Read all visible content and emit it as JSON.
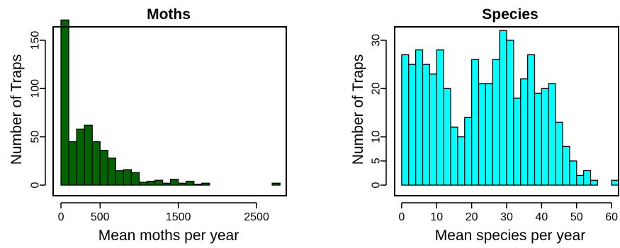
{
  "chart_data": [
    {
      "type": "bar",
      "title": "Moths",
      "xlabel": "Mean moths per year",
      "ylabel": "Number of Traps",
      "bar_color": "#006400",
      "bin_width": 100,
      "bins_start": [
        0,
        100,
        200,
        300,
        400,
        500,
        600,
        700,
        800,
        900,
        1000,
        1100,
        1200,
        1300,
        1400,
        1500,
        1600,
        1700,
        1800,
        1900,
        2000,
        2100,
        2200,
        2300,
        2400,
        2500,
        2600,
        2700
      ],
      "values": [
        171,
        45,
        58,
        62,
        45,
        36,
        28,
        15,
        16,
        13,
        3,
        4,
        5,
        2,
        6,
        2,
        4,
        1,
        2,
        0,
        0,
        0,
        0,
        0,
        0,
        0,
        0,
        2
      ],
      "xlim": [
        -100,
        2880
      ],
      "ylim": [
        0,
        175
      ],
      "xticks": [
        0,
        500,
        1500,
        2500
      ],
      "xtick_labels": [
        "0",
        "500",
        "1500",
        "2500"
      ],
      "yticks": [
        0,
        50,
        100,
        150
      ],
      "ytick_labels": [
        "0",
        "50",
        "100",
        "150"
      ],
      "grid": false,
      "legend": "none"
    },
    {
      "type": "bar",
      "title": "Species",
      "xlabel": "Mean species per year",
      "ylabel": "Number of Traps",
      "bar_color": "#00FFFF",
      "bin_width": 2,
      "bins_start": [
        0,
        2,
        4,
        6,
        8,
        10,
        12,
        14,
        16,
        18,
        20,
        22,
        24,
        26,
        28,
        30,
        32,
        34,
        36,
        38,
        40,
        42,
        44,
        46,
        48,
        50,
        52,
        54,
        56,
        58,
        60
      ],
      "values": [
        27,
        25,
        28,
        25,
        23,
        28,
        20,
        12,
        10,
        14,
        26,
        21,
        21,
        26,
        32,
        30,
        18,
        22,
        27,
        19,
        20,
        21,
        13,
        8,
        5,
        2,
        3,
        1,
        0,
        0,
        1
      ],
      "xlim": [
        -2,
        62
      ],
      "ylim": [
        0,
        33
      ],
      "xticks": [
        0,
        10,
        20,
        30,
        40,
        50,
        60
      ],
      "xtick_labels": [
        "0",
        "10",
        "20",
        "30",
        "40",
        "50",
        "60"
      ],
      "yticks": [
        0,
        5,
        10,
        20,
        30
      ],
      "ytick_labels": [
        "0",
        "5",
        "10",
        "20",
        "30"
      ],
      "grid": false,
      "legend": "none"
    }
  ]
}
